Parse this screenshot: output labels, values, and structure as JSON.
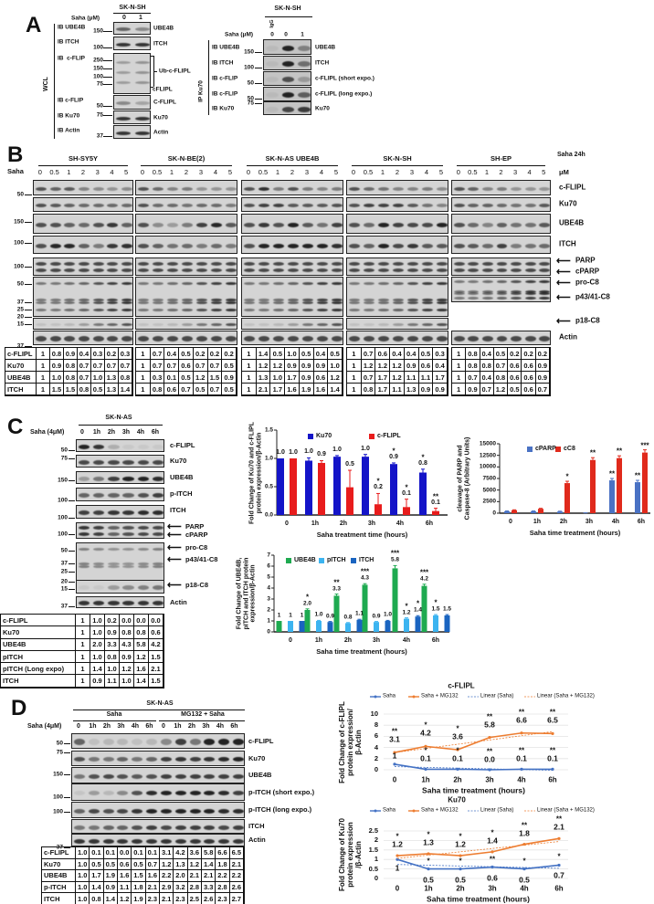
{
  "panel_a": {
    "label": "A",
    "wcl": {
      "title": "SK-N-SH",
      "saha_label": "Saha (μM)",
      "lanes": [
        "0",
        "1"
      ],
      "side_label": "WCL",
      "bracket_label": "Ub-c-FLIPL",
      "rows": [
        {
          "ib": "IB UBE4B",
          "mw": [
            "150"
          ],
          "protein": "UBE4B"
        },
        {
          "ib": "IB ITCH",
          "mw": [
            "100"
          ],
          "protein": "ITCH"
        },
        {
          "ib": "IB  c-FLIP",
          "mw": [
            "250",
            "150",
            "100",
            "75"
          ],
          "protein": "cFLIPL"
        },
        {
          "ib": "IB c-FLIP",
          "mw": [
            "50"
          ],
          "protein": "C-FLIPL"
        },
        {
          "ib": "IB Ku70",
          "mw": [
            "75"
          ],
          "protein": "Ku70"
        },
        {
          "ib": "IB Actin",
          "mw": [
            "37"
          ],
          "protein": "Actin"
        }
      ]
    },
    "ip": {
      "title": "SK-N-SH",
      "igg": "IgG",
      "saha_label": "Saha (μM)",
      "lanes": [
        "0",
        "0",
        "1"
      ],
      "side_label": "IP Ku70",
      "rows": [
        {
          "ib": "IB UBE4B",
          "mw": [
            "150"
          ],
          "protein": "UBE4B"
        },
        {
          "ib": "IB ITCH",
          "mw": [
            "100"
          ],
          "protein": "ITCH"
        },
        {
          "ib": "IB c-FLIP",
          "mw": [
            "50"
          ],
          "protein": "c-FLIPL (short expo.)"
        },
        {
          "ib": "IB c-FLIP",
          "mw": [
            "50"
          ],
          "protein": "c-FLIPL (long expo.)"
        },
        {
          "ib": "IB Ku70",
          "mw": [
            "75"
          ],
          "protein": "Ku70"
        }
      ]
    }
  },
  "panel_b": {
    "label": "B",
    "treatment": "Saha 24h",
    "saha_label": "Saha",
    "unit": "μM",
    "lanes": [
      "0",
      "0.5",
      "1",
      "2",
      "3",
      "4",
      "5"
    ],
    "mw": [
      "50",
      "150",
      "100",
      "100",
      "50",
      "37",
      "25",
      "20",
      "15",
      "37"
    ],
    "proteins": [
      "c-FLIPL",
      "Ku70",
      "UBE4B",
      "ITCH",
      "PARP",
      "cPARP",
      "pro-C8",
      "p43/41-C8",
      "p18-C8",
      "Actin"
    ],
    "table_rows": [
      "c-FLIPL",
      "Ku70",
      "UBE4B",
      "ITCH"
    ],
    "cell_lines": [
      {
        "name": "SH-SY5Y",
        "table": [
          [
            "1",
            "0.8",
            "0.9",
            "0.4",
            "0.3",
            "0.2",
            "0.3"
          ],
          [
            "1",
            "0.9",
            "0.8",
            "0.7",
            "0.7",
            "0.7",
            "0.7"
          ],
          [
            "1",
            "1.0",
            "0.8",
            "0.7",
            "1.0",
            "1.3",
            "0.8"
          ],
          [
            "1",
            "1.5",
            "1.5",
            "0.8",
            "0.5",
            "1.3",
            "1.4"
          ]
        ]
      },
      {
        "name": "SK-N-BE(2)",
        "table": [
          [
            "1",
            "0.7",
            "0.4",
            "0.5",
            "0.2",
            "0.2",
            "0.2"
          ],
          [
            "1",
            "0.7",
            "0.7",
            "0.6",
            "0.7",
            "0.7",
            "0.5"
          ],
          [
            "1",
            "0.3",
            "0.1",
            "0.5",
            "1.2",
            "1.5",
            "0.9"
          ],
          [
            "1",
            "0.8",
            "0.6",
            "0.7",
            "0.5",
            "0.7",
            "0.5"
          ]
        ]
      },
      {
        "name": "SK-N-AS UBE4B",
        "table": [
          [
            "1",
            "1.4",
            "0.5",
            "1.0",
            "0.5",
            "0.4",
            "0.5"
          ],
          [
            "1",
            "1.2",
            "1.2",
            "0.9",
            "0.9",
            "0.9",
            "1.0"
          ],
          [
            "1",
            "1.3",
            "1.0",
            "1.7",
            "0.9",
            "0.6",
            "1.2"
          ],
          [
            "1",
            "2.1",
            "1.7",
            "1.6",
            "1.9",
            "1.6",
            "1.4"
          ]
        ]
      },
      {
        "name": "SK-N-SH",
        "table": [
          [
            "1",
            "0.7",
            "0.6",
            "0.4",
            "0.4",
            "0.5",
            "0.3"
          ],
          [
            "1",
            "1.2",
            "1.2",
            "1.2",
            "0.9",
            "0.6",
            "0.4"
          ],
          [
            "1",
            "0.7",
            "1.7",
            "1.2",
            "1.1",
            "1.1",
            "1.7"
          ],
          [
            "1",
            "0.8",
            "1.7",
            "1.1",
            "1.3",
            "0.9",
            "0.9"
          ]
        ]
      },
      {
        "name": "SH-EP",
        "table": [
          [
            "1",
            "0.8",
            "0.4",
            "0.5",
            "0.2",
            "0.2",
            "0.2"
          ],
          [
            "1",
            "0.8",
            "0.8",
            "0.7",
            "0.6",
            "0.6",
            "0.9"
          ],
          [
            "1",
            "0.7",
            "0.4",
            "0.8",
            "0.6",
            "0.6",
            "0.9"
          ],
          [
            "1",
            "0.9",
            "0.7",
            "1.2",
            "0.5",
            "0.6",
            "0.7"
          ]
        ]
      }
    ]
  },
  "panel_c": {
    "label": "C",
    "cell_line": "SK-N-AS",
    "saha_label": "Saha (4μM)",
    "lanes": [
      "0",
      "1h",
      "2h",
      "3h",
      "4h",
      "6h"
    ],
    "mw": [
      "50",
      "75",
      "150",
      "100",
      "100",
      "100",
      "50",
      "37",
      "25",
      "20",
      "15",
      "37"
    ],
    "proteins": [
      "c-FLIPL",
      "Ku70",
      "UBE4B",
      "p-ITCH",
      "ITCH",
      "PARP",
      "cPARP",
      "pro-C8",
      "p43/41-C8",
      "p18-C8",
      "Actin"
    ],
    "table": [
      {
        "name": "c-FLIPL",
        "values": [
          "1",
          "1.0",
          "0.2",
          "0.0",
          "0.0",
          "0.0"
        ]
      },
      {
        "name": "Ku70",
        "values": [
          "1",
          "1.0",
          "0.9",
          "0.8",
          "0.8",
          "0.6"
        ]
      },
      {
        "name": "UBE4B",
        "values": [
          "1",
          "2.0",
          "3.3",
          "4.3",
          "5.8",
          "4.2"
        ]
      },
      {
        "name": "pITCH",
        "values": [
          "1",
          "1.0",
          "0.8",
          "0.9",
          "1.2",
          "1.5"
        ]
      },
      {
        "name": "pITCH (Long expo)",
        "values": [
          "1",
          "1.4",
          "1.0",
          "1.2",
          "1.6",
          "2.1"
        ]
      },
      {
        "name": "ITCH",
        "values": [
          "1",
          "0.9",
          "1.1",
          "1.0",
          "1.4",
          "1.5"
        ]
      }
    ]
  },
  "panel_d": {
    "label": "D",
    "cell_line": "SK-N-AS",
    "group_saha": "Saha",
    "group_mg": "MG132 + Saha",
    "saha_label": "Saha (4μM)",
    "lanes": [
      "0",
      "1h",
      "2h",
      "3h",
      "4h",
      "6h",
      "0",
      "1h",
      "2h",
      "3h",
      "4h",
      "6h"
    ],
    "mw": [
      "50",
      "75",
      "150",
      "100",
      "100",
      "37"
    ],
    "proteins": [
      "c-FLIPL",
      "Ku70",
      "UBE4B",
      "p-ITCH (short expo.)",
      "p-ITCH (long expo.)",
      "ITCH",
      "Actin"
    ],
    "table": [
      {
        "name": "c-FLIPL",
        "values": [
          "1.0",
          "0.1",
          "0.1",
          "0.0",
          "0.1",
          "0.1",
          "3.1",
          "4.2",
          "3.6",
          "5.8",
          "6.6",
          "6.5"
        ]
      },
      {
        "name": "Ku70",
        "values": [
          "1.0",
          "0.5",
          "0.5",
          "0.6",
          "0.5",
          "0.7",
          "1.2",
          "1.3",
          "1.2",
          "1.4",
          "1.8",
          "2.1"
        ]
      },
      {
        "name": "UBE4B",
        "values": [
          "1.0",
          "1.7",
          "1.9",
          "1.6",
          "1.5",
          "1.6",
          "2.2",
          "2.0",
          "2.1",
          "2.1",
          "2.2",
          "2.2"
        ]
      },
      {
        "name": "p-ITCH",
        "values": [
          "1.0",
          "1.4",
          "0.9",
          "1.1",
          "1.8",
          "2.1",
          "2.9",
          "3.2",
          "2.8",
          "3.3",
          "2.8",
          "2.6"
        ]
      },
      {
        "name": "ITCH",
        "values": [
          "1.0",
          "0.8",
          "1.4",
          "1.2",
          "1.9",
          "2.3",
          "2.1",
          "2.3",
          "2.5",
          "2.6",
          "2.3",
          "2.7"
        ]
      }
    ]
  },
  "chart_data": [
    {
      "id": "c1",
      "type": "bar",
      "categories": [
        "0",
        "1h",
        "2h",
        "3h",
        "4h",
        "6h"
      ],
      "ylim": [
        0,
        1.5
      ],
      "yticks": [
        "0.0",
        "0.5",
        "1.0",
        "1.5"
      ],
      "ylabel": "Fold Change of Ku70 and c-FLIPL\nprotein expression/β-Actin",
      "xlabel": "Saha treatment time (hours)",
      "legend": "top",
      "series": [
        {
          "name": "Ku70",
          "color": "#1414c8",
          "values": [
            1.0,
            0.96,
            1.03,
            1.03,
            0.9,
            0.75
          ],
          "labels": [
            "1.0",
            "1.0",
            "1.0",
            "1.0",
            "0.9",
            "0.8"
          ],
          "sig": [
            "",
            "",
            "",
            "",
            "*",
            "*"
          ],
          "err": [
            0,
            0.05,
            0.02,
            0.04,
            0.02,
            0.06
          ]
        },
        {
          "name": "c-FLIPL",
          "color": "#e81c1c",
          "values": [
            1.0,
            0.92,
            0.49,
            0.19,
            0.14,
            0.07
          ],
          "labels": [
            "1.0",
            "0.9",
            "0.5",
            "0.2",
            "0.1",
            "0.1"
          ],
          "sig": [
            "",
            "",
            "",
            "*",
            "*",
            "**"
          ],
          "err": [
            0,
            0.04,
            0.3,
            0.19,
            0.14,
            0.05
          ]
        }
      ]
    },
    {
      "id": "c2",
      "type": "bar",
      "categories": [
        "0",
        "1h",
        "2h",
        "3h",
        "4h",
        "6h"
      ],
      "ylim": [
        0,
        15000
      ],
      "yticks": [
        "0",
        "2500",
        "5000",
        "7500",
        "10000",
        "12500",
        "15000"
      ],
      "ylabel": "cleavage of PARP and\nCaspase-8 (Arbitrary Units)",
      "xlabel": "Saha time treatment (hours)",
      "legend": "top",
      "series": [
        {
          "name": "cPARP",
          "color": "#4a72c4",
          "values": [
            400,
            400,
            350,
            50,
            7100,
            6700
          ],
          "labels": [
            "",
            "",
            "",
            "",
            "",
            ""
          ],
          "sig": [
            "",
            "",
            "",
            "",
            "**",
            "**"
          ],
          "err": [
            80,
            80,
            80,
            20,
            400,
            400
          ]
        },
        {
          "name": "cC8",
          "color": "#e02a1c",
          "values": [
            650,
            950,
            6500,
            11500,
            11900,
            13100
          ],
          "labels": [
            "",
            "",
            "",
            "",
            "",
            ""
          ],
          "sig": [
            "",
            "",
            "*",
            "**",
            "**",
            "***"
          ],
          "err": [
            80,
            100,
            400,
            500,
            500,
            600
          ]
        }
      ]
    },
    {
      "id": "c3",
      "type": "bar",
      "categories": [
        "0",
        "1h",
        "2h",
        "3h",
        "4h",
        "6h"
      ],
      "ylim": [
        0,
        7
      ],
      "yticks": [
        "0",
        "1",
        "2",
        "3",
        "4",
        "5",
        "6",
        "7"
      ],
      "ylabel": "Fold Change of UBE4B,\npITCH and ITCH protein\nexpression/β-Actin",
      "xlabel": "Saha time treatment (hours)",
      "legend": "top",
      "series": [
        {
          "name": "UBE4B",
          "color": "#1eaa50",
          "values": [
            1,
            2.0,
            3.3,
            4.3,
            5.8,
            4.2
          ],
          "labels": [
            "1",
            "2.0",
            "3.3",
            "4.3",
            "5.8",
            "4.2"
          ],
          "sig": [
            "",
            "*",
            "**",
            "***",
            "***",
            "***"
          ],
          "err": [
            0,
            0.1,
            0.15,
            0.1,
            0.25,
            0.15
          ]
        },
        {
          "name": "pITCH",
          "color": "#3cb4f0",
          "values": [
            1,
            1.0,
            0.8,
            0.9,
            1.2,
            1.5
          ],
          "labels": [
            "1",
            "1.0",
            "0.8",
            "0.9",
            "1.2",
            "1.5"
          ],
          "sig": [
            "",
            "",
            "",
            "",
            "*",
            "*"
          ],
          "err": [
            0,
            0.05,
            0.05,
            0.05,
            0.08,
            0.08
          ]
        },
        {
          "name": "ITCH",
          "color": "#1a64c0",
          "values": [
            1,
            0.9,
            1.1,
            1.0,
            1.4,
            1.5
          ],
          "labels": [
            "1",
            "0.9",
            "1.1",
            "1.0",
            "1.4",
            "1.5"
          ],
          "sig": [
            "",
            "",
            "",
            "",
            "*",
            ""
          ],
          "err": [
            0,
            0.05,
            0.05,
            0.05,
            0.08,
            0.08
          ]
        }
      ]
    },
    {
      "id": "d1",
      "type": "line",
      "title": "c-FLIPL",
      "categories": [
        "0",
        "1h",
        "2h",
        "3h",
        "4h",
        "6h"
      ],
      "ylim": [
        0,
        10
      ],
      "yticks": [
        "0",
        "2",
        "4",
        "6",
        "8",
        "10"
      ],
      "ylabel": "Fold Change of c-FLIPL\nprotein expression/\nβ-Actin",
      "xlabel": "Saha time treatment (hours)",
      "legend_entries": [
        "Saha",
        "Saha + MG132",
        "Linear (Saha)",
        "Linear (Saha + MG132)"
      ],
      "series": [
        {
          "name": "Saha",
          "color": "#4472c4",
          "values": [
            1,
            0.1,
            0.1,
            0.0,
            0.1,
            0.1
          ],
          "labels": [
            "1",
            "0.1",
            "0.1",
            "0.0",
            "0.1",
            "0.1"
          ],
          "sig": [
            "",
            "*",
            "*",
            "**",
            "**",
            "**"
          ]
        },
        {
          "name": "Saha + MG132",
          "color": "#ed7d31",
          "values": [
            3.1,
            4.2,
            3.6,
            5.8,
            6.6,
            6.5
          ],
          "labels": [
            "3.1",
            "4.2",
            "3.6",
            "5.8",
            "6.6",
            "6.5"
          ],
          "sig": [
            "**",
            "*",
            "*",
            "**",
            "**",
            "**"
          ]
        }
      ]
    },
    {
      "id": "d2",
      "type": "line",
      "title": "Ku70",
      "categories": [
        "0",
        "1h",
        "2h",
        "3h",
        "4h",
        "6h"
      ],
      "ylim": [
        0,
        2.5
      ],
      "yticks": [
        "0",
        "0.5",
        "1",
        "1.5",
        "2",
        "2.5"
      ],
      "ylabel": "Fold Change of Ku70\nprotein expression\n/β-Actin",
      "xlabel": "Saha time treatment (hours)",
      "legend_entries": [
        "Saha",
        "Saha + MG132",
        "Linear (Saha)",
        "Linear (Saha + MG132)"
      ],
      "series": [
        {
          "name": "Saha",
          "color": "#4472c4",
          "values": [
            1,
            0.5,
            0.5,
            0.6,
            0.5,
            0.7
          ],
          "labels": [
            "1",
            "0.5",
            "0.5",
            "0.6",
            "0.5",
            "0.7"
          ],
          "sig": [
            "",
            "*",
            "*",
            "**",
            "*",
            "*"
          ]
        },
        {
          "name": "Saha + MG132",
          "color": "#ed7d31",
          "values": [
            1.2,
            1.3,
            1.2,
            1.4,
            1.8,
            2.1
          ],
          "labels": [
            "1.2",
            "1.3",
            "1.2",
            "1.4",
            "1.8",
            "2.1"
          ],
          "sig": [
            "*",
            "*",
            "*",
            "*",
            "**",
            "**"
          ]
        }
      ]
    }
  ]
}
